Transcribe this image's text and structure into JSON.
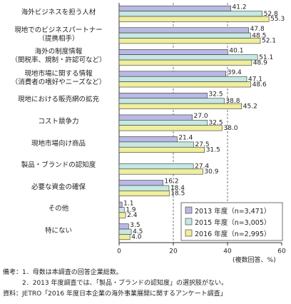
{
  "chart_data": {
    "type": "barh",
    "categories": [
      "海外ビジネスを担う人材",
      "現地でのビジネスパートナー\n（提携相手）",
      "海外の制度情報\n（関税率、規制・許認可など）",
      "現地市場に関する情報\n（消費者の嗜好やニーズなど）",
      "現地における販売網の拡充",
      "コスト競争力",
      "現地市場向け商品",
      "製品・ブランドの認知度",
      "必要な資金の確保",
      "その他",
      "特にない"
    ],
    "series": [
      {
        "name": "2013 年度（n=3,471）",
        "color": "#b9b9e3",
        "values": [
          41.2,
          47.8,
          40.1,
          39.4,
          32.5,
          27.0,
          21.4,
          null,
          16.2,
          1.1,
          3.5
        ],
        "value_labels": [
          "41.2",
          "47.8",
          "40.1",
          "39.4",
          "32.5",
          "27.0",
          "21.4",
          null,
          "16.2",
          "1.1",
          "3.5"
        ]
      },
      {
        "name": "2015 年度（n=3,005）",
        "color": "#c6e7e2",
        "values": [
          52.8,
          48.5,
          51.1,
          47.1,
          38.8,
          32.5,
          27.5,
          27.4,
          18.4,
          1.9,
          4.5
        ],
        "value_labels": [
          "52.8",
          "48.5",
          "51.1",
          "47.1",
          "38.8",
          "32.5",
          "27.5",
          "27.4",
          "18.4",
          "1.9",
          "4.5"
        ]
      },
      {
        "name": "2016 年度（n=2,995）",
        "color": "#eeee9e",
        "values": [
          55.3,
          52.1,
          48.9,
          48.6,
          45.2,
          38.0,
          31.5,
          30.9,
          18.5,
          2.4,
          4.0
        ],
        "value_labels": [
          "55.3",
          "52.1",
          "48.9",
          "48.6",
          "45.2",
          "38.0",
          "31.5",
          "30.9",
          "18.5",
          "2.4",
          "4.0"
        ]
      }
    ],
    "xlim": [
      0,
      60
    ],
    "xticks": [
      0,
      20,
      40,
      60
    ],
    "grid": true,
    "xlabel": "(複数回答、%)",
    "notes": [
      "備考：1．母数は本調査の回答企業総数。",
      "2．2013 年度調査では、「製品・ブランドの認知度」の選択肢がない。",
      "資料：JETRO「2016 年度日本企業の海外事業展開に関するアンケート調査」"
    ]
  }
}
